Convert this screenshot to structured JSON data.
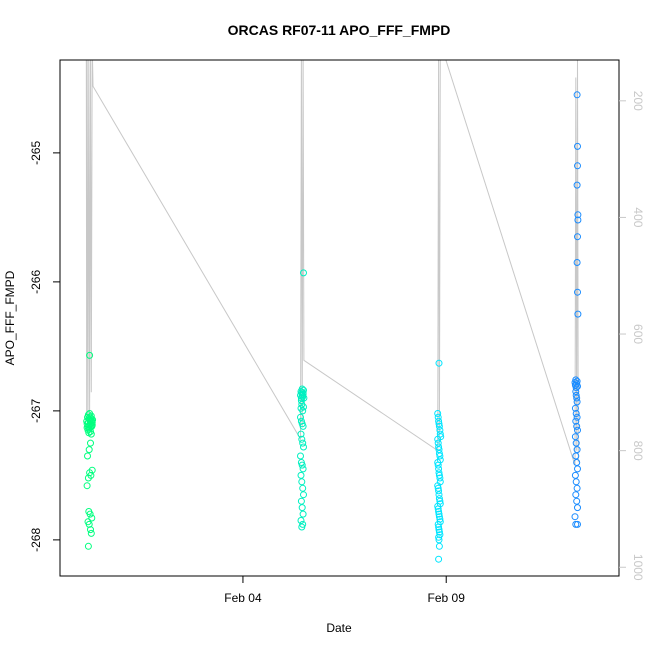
{
  "chart_data": {
    "type": "scatter",
    "title": "ORCAS RF07-11 APO_FFF_FMPD",
    "xlabel": "Date",
    "ylabel": "APO_FFF_FMPD",
    "x_type": "date",
    "xlim": [
      "2016-01-30T12:00",
      "2016-02-13T06:00"
    ],
    "ylim": [
      -268.28,
      -264.28
    ],
    "y_ticks": [
      -268,
      -267,
      -266,
      -265
    ],
    "x_ticks": [
      {
        "label": "Feb 04",
        "date": "2016-02-04"
      },
      {
        "label": "Feb 09",
        "date": "2016-02-09"
      }
    ],
    "y2_ticks": [
      200,
      400,
      600,
      800,
      1000
    ],
    "y2lim": [
      1015,
      130
    ],
    "grid": false,
    "point_colors": [
      "#00ff7f",
      "#00f0c0",
      "#00e5ff",
      "#1a8cff"
    ],
    "line_color": "#c8c8c8",
    "series": [
      {
        "color": "#00ff7f",
        "x": [
          "2016-01-31T03:45",
          "2016-01-31T04:00",
          "2016-01-31T04:15",
          "2016-01-31T04:30",
          "2016-01-31T04:45",
          "2016-01-31T05:00",
          "2016-01-31T05:15",
          "2016-01-31T05:30",
          "2016-01-31T05:45",
          "2016-01-31T06:00",
          "2016-01-31T06:15",
          "2016-01-31T06:30",
          "2016-01-31T06:45",
          "2016-01-31T07:00",
          "2016-01-31T07:15",
          "2016-01-31T04:30",
          "2016-01-31T04:45",
          "2016-01-31T05:15",
          "2016-01-31T05:30",
          "2016-01-31T06:00",
          "2016-01-31T06:30",
          "2016-01-31T07:00",
          "2016-01-31T04:00",
          "2016-01-31T05:00",
          "2016-01-31T05:45",
          "2016-01-31T06:15",
          "2016-01-31T06:45",
          "2016-01-31T04:15",
          "2016-01-31T05:15",
          "2016-01-31T06:00",
          "2016-01-31T06:30",
          "2016-01-31T04:45",
          "2016-01-31T05:30",
          "2016-01-31T06:15",
          "2016-01-31T07:00",
          "2016-01-31T04:00",
          "2016-01-31T05:00",
          "2016-01-31T05:45",
          "2016-01-31T06:45",
          "2016-01-31T04:30",
          "2016-01-31T05:15",
          "2016-01-31T06:00",
          "2016-01-31T04:45",
          "2016-01-31T05:30",
          "2016-01-31T06:30"
        ],
        "y": [
          -267.08,
          -267.1,
          -267.05,
          -267.12,
          -267.09,
          -267.06,
          -267.11,
          -267.07,
          -267.13,
          -267.1,
          -267.08,
          -267.06,
          -267.12,
          -267.09,
          -267.07,
          -267.15,
          -267.03,
          -267.14,
          -267.02,
          -267.16,
          -267.04,
          -267.11,
          -267.13,
          -267.17,
          -267.05,
          -267.12,
          -267.08,
          -267.35,
          -267.3,
          -267.25,
          -267.18,
          -267.52,
          -267.48,
          -267.5,
          -267.46,
          -267.58,
          -267.78,
          -267.8,
          -267.83,
          -267.86,
          -267.88,
          -267.92,
          -268.05,
          -266.57,
          -267.95
        ]
      },
      {
        "color": "#00f0c0",
        "x": [
          "2016-02-05T10:00",
          "2016-02-05T10:15",
          "2016-02-05T10:30",
          "2016-02-05T10:45",
          "2016-02-05T11:00",
          "2016-02-05T11:15",
          "2016-02-05T11:30",
          "2016-02-05T11:45",
          "2016-02-05T12:00",
          "2016-02-05T10:30",
          "2016-02-05T11:00",
          "2016-02-05T11:30",
          "2016-02-05T10:15",
          "2016-02-05T10:45",
          "2016-02-05T11:15",
          "2016-02-05T11:45",
          "2016-02-05T10:00",
          "2016-02-05T10:30",
          "2016-02-05T11:00",
          "2016-02-05T11:30",
          "2016-02-05T10:15",
          "2016-02-05T10:45",
          "2016-02-05T11:15",
          "2016-02-05T11:45",
          "2016-02-05T10:00",
          "2016-02-05T10:30",
          "2016-02-05T11:00",
          "2016-02-05T11:30",
          "2016-02-05T10:15",
          "2016-02-05T10:45",
          "2016-02-05T11:15",
          "2016-02-05T11:45",
          "2016-02-05T10:30",
          "2016-02-05T11:00",
          "2016-02-05T11:30",
          "2016-02-05T10:15",
          "2016-02-05T10:45",
          "2016-02-05T11:15",
          "2016-02-05T11:45"
        ],
        "y": [
          -266.88,
          -266.85,
          -266.9,
          -266.86,
          -266.83,
          -266.89,
          -266.87,
          -266.84,
          -266.9,
          -266.92,
          -266.88,
          -266.86,
          -266.98,
          -266.95,
          -267.0,
          -266.97,
          -267.05,
          -267.08,
          -267.1,
          -267.12,
          -267.18,
          -267.22,
          -267.25,
          -267.28,
          -267.35,
          -267.4,
          -267.42,
          -267.45,
          -267.5,
          -267.55,
          -267.6,
          -267.65,
          -267.7,
          -267.75,
          -267.8,
          -267.85,
          -267.9,
          -267.88,
          -265.93
        ]
      },
      {
        "color": "#00e5ff",
        "x": [
          "2016-02-08T19:00",
          "2016-02-08T19:15",
          "2016-02-08T19:30",
          "2016-02-08T19:45",
          "2016-02-08T20:00",
          "2016-02-08T20:15",
          "2016-02-08T20:30",
          "2016-02-08T20:45",
          "2016-02-08T19:00",
          "2016-02-08T19:15",
          "2016-02-08T19:30",
          "2016-02-08T19:45",
          "2016-02-08T20:00",
          "2016-02-08T20:15",
          "2016-02-08T20:30",
          "2016-02-08T19:00",
          "2016-02-08T19:15",
          "2016-02-08T19:30",
          "2016-02-08T19:45",
          "2016-02-08T20:00",
          "2016-02-08T20:15",
          "2016-02-08T20:30",
          "2016-02-08T19:00",
          "2016-02-08T19:15",
          "2016-02-08T19:30",
          "2016-02-08T19:45",
          "2016-02-08T20:00",
          "2016-02-08T20:15",
          "2016-02-08T20:30",
          "2016-02-08T19:00",
          "2016-02-08T19:15",
          "2016-02-08T19:30",
          "2016-02-08T19:45",
          "2016-02-08T20:00",
          "2016-02-08T20:15",
          "2016-02-08T20:30",
          "2016-02-08T19:15",
          "2016-02-08T19:30",
          "2016-02-08T19:45",
          "2016-02-08T20:00",
          "2016-02-08T20:15",
          "2016-02-08T19:30",
          "2016-02-08T19:45",
          "2016-02-08T20:00",
          "2016-02-08T19:30",
          "2016-02-08T19:45"
        ],
        "y": [
          -267.02,
          -267.05,
          -267.08,
          -267.1,
          -267.12,
          -267.15,
          -267.18,
          -267.2,
          -267.22,
          -267.25,
          -267.28,
          -267.3,
          -267.33,
          -267.35,
          -267.38,
          -267.4,
          -267.42,
          -267.45,
          -267.48,
          -267.5,
          -267.52,
          -267.55,
          -267.58,
          -267.6,
          -267.62,
          -267.65,
          -267.68,
          -267.7,
          -267.72,
          -267.74,
          -267.76,
          -267.78,
          -267.8,
          -267.82,
          -267.84,
          -267.86,
          -267.88,
          -267.9,
          -267.92,
          -267.94,
          -267.96,
          -267.98,
          -268.0,
          -268.05,
          -268.15,
          -266.63
        ]
      },
      {
        "color": "#1a8cff",
        "x": [
          "2016-02-12T04:00",
          "2016-02-12T04:15",
          "2016-02-12T04:30",
          "2016-02-12T04:45",
          "2016-02-12T05:00",
          "2016-02-12T05:15",
          "2016-02-12T05:30",
          "2016-02-12T04:30",
          "2016-02-12T04:45",
          "2016-02-12T05:00",
          "2016-02-12T05:15",
          "2016-02-12T04:15",
          "2016-02-12T04:45",
          "2016-02-12T05:15",
          "2016-02-12T04:30",
          "2016-02-12T05:00",
          "2016-02-12T05:30",
          "2016-02-12T04:15",
          "2016-02-12T04:45",
          "2016-02-12T05:15",
          "2016-02-12T04:30",
          "2016-02-12T05:00",
          "2016-02-12T05:30",
          "2016-02-12T04:15",
          "2016-02-12T04:45",
          "2016-02-12T05:15",
          "2016-02-12T04:30",
          "2016-02-12T05:00",
          "2016-02-12T05:30",
          "2016-02-12T04:00",
          "2016-02-12T04:30",
          "2016-02-12T05:30",
          "2016-02-12T05:15",
          "2016-02-12T05:45",
          "2016-02-12T05:30",
          "2016-02-12T05:15",
          "2016-02-12T05:30",
          "2016-02-12T05:45",
          "2016-02-12T05:30",
          "2016-02-12T05:15",
          "2016-02-12T05:30",
          "2016-02-12T05:45"
        ],
        "y": [
          -266.78,
          -266.8,
          -266.76,
          -266.82,
          -266.79,
          -266.77,
          -266.81,
          -266.85,
          -266.88,
          -266.9,
          -266.93,
          -266.98,
          -267.02,
          -267.05,
          -267.08,
          -267.12,
          -267.15,
          -267.2,
          -267.25,
          -267.3,
          -267.35,
          -267.4,
          -267.45,
          -267.5,
          -267.55,
          -267.6,
          -267.65,
          -267.7,
          -267.75,
          -267.82,
          -267.88,
          -267.88,
          -265.25,
          -265.48,
          -265.1,
          -264.55,
          -264.95,
          -265.52,
          -265.65,
          -265.85,
          -266.08,
          -266.25
        ]
      }
    ],
    "line_series": {
      "color": "#c8c8c8",
      "description_of_role": "",
      "x": [
        "2016-01-31T03:30",
        "2016-01-31T03:45",
        "2016-01-31T04:00",
        "2016-01-31T04:30",
        "2016-01-31T05:00",
        "2016-01-31T05:30",
        "2016-01-31T06:00",
        "2016-01-31T06:30",
        "2016-01-31T07:00",
        "2016-01-31T07:30",
        "2016-02-05T10:00",
        "2016-02-05T10:30",
        "2016-02-05T11:00",
        "2016-02-05T11:30",
        "2016-02-05T12:00",
        "2016-02-08T19:00",
        "2016-02-08T19:30",
        "2016-02-08T20:00",
        "2016-02-08T20:30",
        "2016-02-12T04:00",
        "2016-02-12T04:30",
        "2016-02-12T05:00",
        "2016-02-12T05:30",
        "2016-02-12T06:00"
      ],
      "y2": [
        100,
        750,
        120,
        740,
        100,
        745,
        130,
        700,
        100,
        175,
        780,
        120,
        760,
        100,
        645,
        800,
        120,
        790,
        100,
        825,
        160,
        800,
        110,
        820
      ]
    }
  }
}
